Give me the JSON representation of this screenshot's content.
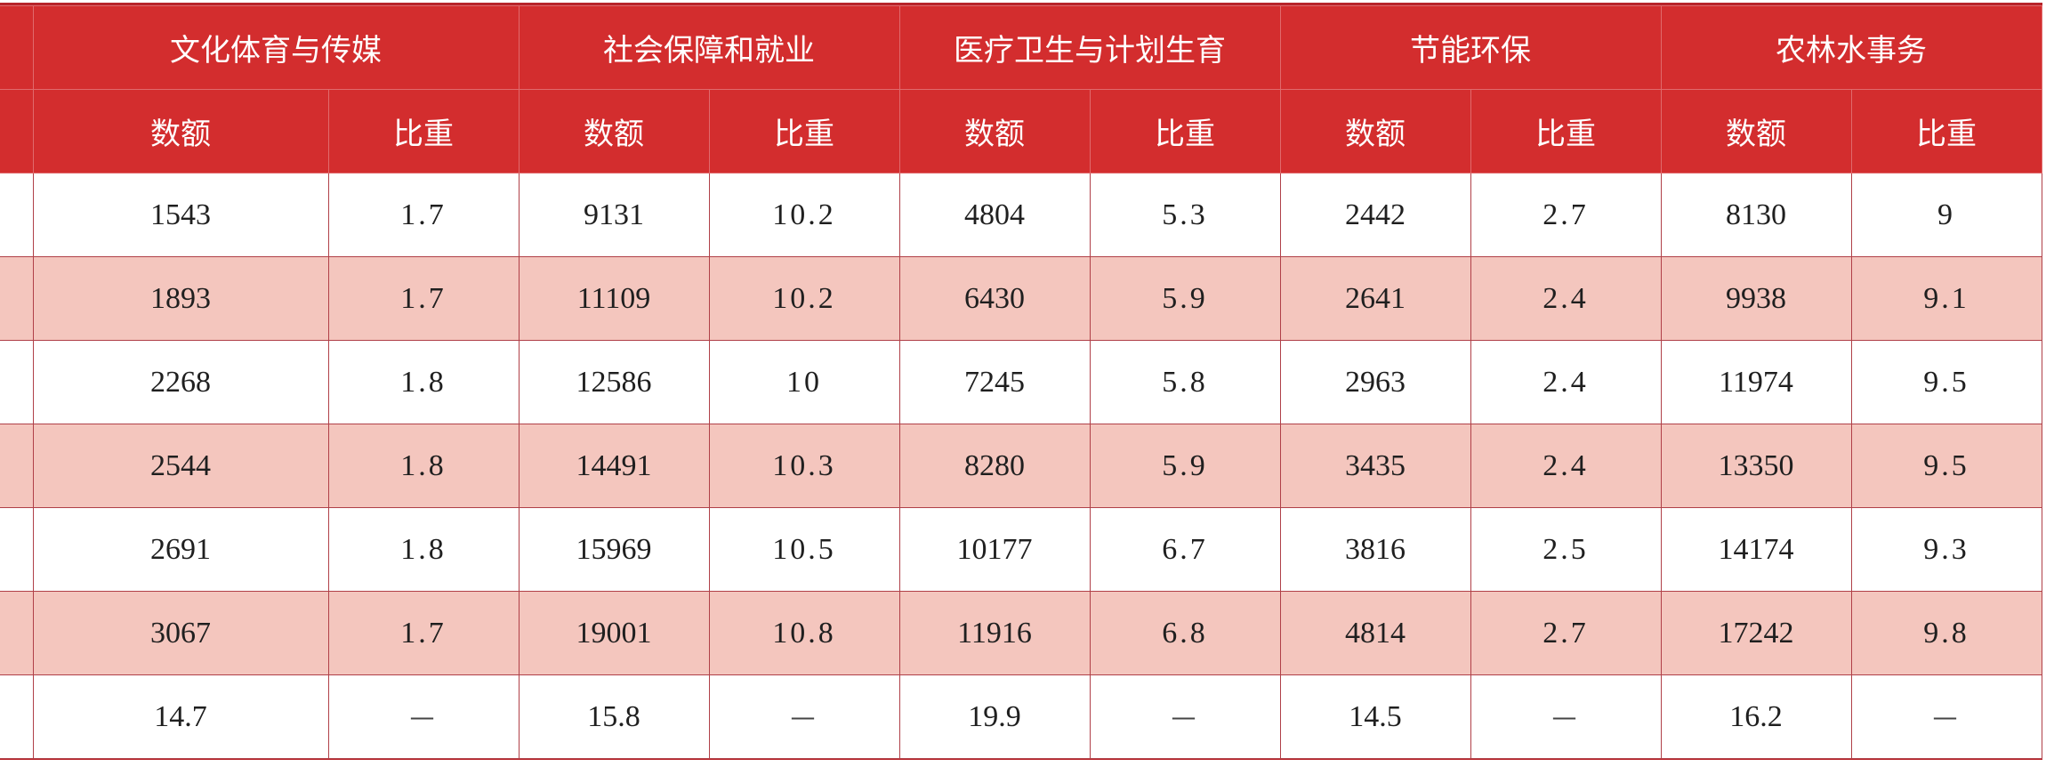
{
  "table": {
    "groups": [
      "文化体育与传媒",
      "社会保障和就业",
      "医疗卫生与计划生育",
      "节能环保",
      "农林水事务"
    ],
    "sub_headers": [
      "数额",
      "比重"
    ],
    "rows": [
      [
        "1543",
        "1.7",
        "9131",
        "10.2",
        "4804",
        "5.3",
        "2442",
        "2.7",
        "8130",
        "9"
      ],
      [
        "1893",
        "1.7",
        "11109",
        "10.2",
        "6430",
        "5.9",
        "2641",
        "2.4",
        "9938",
        "9.1"
      ],
      [
        "2268",
        "1.8",
        "12586",
        "10",
        "7245",
        "5.8",
        "2963",
        "2.4",
        "11974",
        "9.5"
      ],
      [
        "2544",
        "1.8",
        "14491",
        "10.3",
        "8280",
        "5.9",
        "3435",
        "2.4",
        "13350",
        "9.5"
      ],
      [
        "2691",
        "1.8",
        "15969",
        "10.5",
        "10177",
        "6.7",
        "3816",
        "2.5",
        "14174",
        "9.3"
      ],
      [
        "3067",
        "1.7",
        "19001",
        "10.8",
        "11916",
        "6.8",
        "4814",
        "2.7",
        "17242",
        "9.8"
      ],
      [
        "14.7",
        "—",
        "15.8",
        "—",
        "19.9",
        "—",
        "14.5",
        "—",
        "16.2",
        "—"
      ]
    ],
    "colors": {
      "header_bg": "#d32d2e",
      "stripe_bg": "#f4c6be",
      "border": "#b04048"
    }
  }
}
